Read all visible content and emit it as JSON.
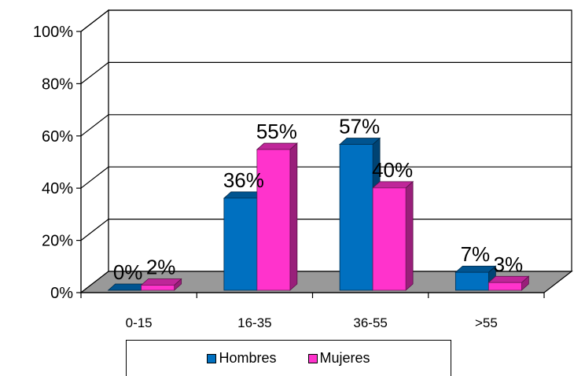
{
  "chart_data": {
    "type": "bar",
    "categories": [
      "0-15",
      "16-35",
      "36-55",
      ">55"
    ],
    "series": [
      {
        "name": "Hombres",
        "values": [
          0,
          36,
          57,
          7
        ],
        "labels": [
          "0%",
          "36%",
          "57%",
          "7%"
        ]
      },
      {
        "name": "Mujeres",
        "values": [
          2,
          55,
          40,
          3
        ],
        "labels": [
          "2%",
          "55%",
          "40%",
          "3%"
        ]
      }
    ],
    "yticks": [
      "0%",
      "20%",
      "40%",
      "60%",
      "80%",
      "100%"
    ],
    "ylim": [
      0,
      100
    ],
    "grid": true,
    "three_d": true,
    "legend_position": "bottom"
  },
  "colors": {
    "hombres": "#0070c0",
    "mujeres": "#ff33cc",
    "floor": "#999999"
  }
}
